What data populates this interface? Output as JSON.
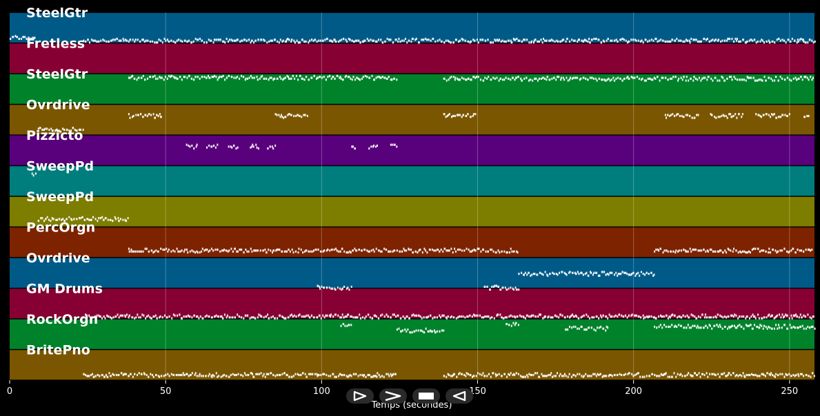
{
  "tracks": [
    {
      "name": "SteelGtr",
      "color": "#005a87",
      "ymin": 40,
      "ymax": 72,
      "segments": [
        [
          0,
          8.5,
          45
        ],
        [
          23.5,
          258,
          42
        ]
      ]
    },
    {
      "name": "Fretless",
      "color": "#870033",
      "ymin": 40,
      "ymax": 72,
      "segments": [
        [
          38,
          124,
          35
        ],
        [
          139,
          258,
          34
        ]
      ]
    },
    {
      "name": "SteelGtr",
      "color": "#00822b",
      "ymin": 40,
      "ymax": 72,
      "segments": [
        [
          9,
          23.5,
          12
        ]
      ]
    },
    {
      "name": "Ovrdrive",
      "color": "#7a5600",
      "ymin": 40,
      "ymax": 72,
      "segments": [
        [
          38,
          49,
          60
        ],
        [
          85,
          95.5,
          60
        ],
        [
          139,
          149.5,
          60
        ],
        [
          210,
          221,
          60
        ],
        [
          224.5,
          235,
          60
        ],
        [
          239,
          250,
          60
        ],
        [
          254.5,
          256.5,
          60
        ]
      ]
    },
    {
      "name": "Pizzicto",
      "color": "#59007d",
      "ymin": 40,
      "ymax": 72,
      "segments": [
        [
          56.5,
          60,
          60
        ],
        [
          63,
          66.5,
          60
        ],
        [
          70,
          73,
          60
        ],
        [
          77,
          80,
          60
        ],
        [
          82.5,
          85,
          60
        ],
        [
          109.5,
          111,
          60
        ],
        [
          115,
          118,
          60
        ],
        [
          122,
          124,
          60
        ]
      ]
    },
    {
      "name": "SweepPd",
      "color": "#007d7d",
      "ymin": 40,
      "ymax": 72,
      "segments": [
        [
          7,
          8.5,
          63
        ]
      ]
    },
    {
      "name": "SweepPd",
      "color": "#7d7d00",
      "ymin": 40,
      "ymax": 72,
      "segments": [
        [
          9,
          38,
          48
        ]
      ]
    },
    {
      "name": "PercOrgn",
      "color": "#7d2300",
      "ymin": 40,
      "ymax": 72,
      "segments": [
        [
          38,
          163,
          47
        ],
        [
          206.5,
          257,
          47
        ]
      ]
    },
    {
      "name": "Ovrdrive",
      "color": "#005a87",
      "ymin": 40,
      "ymax": 72,
      "segments": [
        [
          98.5,
          109.5,
          40
        ],
        [
          152,
          163,
          40
        ],
        [
          163,
          207,
          55
        ]
      ]
    },
    {
      "name": "GM Drums",
      "color": "#870033",
      "ymin": 40,
      "ymax": 72,
      "segments": [
        [
          23.5,
          258,
          42
        ]
      ]
    },
    {
      "name": "RockOrgn",
      "color": "#00822b",
      "ymin": 40,
      "ymax": 72,
      "segments": [
        [
          106,
          109.5,
          66
        ],
        [
          124,
          139,
          60
        ],
        [
          159,
          163,
          66
        ],
        [
          178,
          192,
          62
        ],
        [
          206.5,
          258,
          64
        ]
      ]
    },
    {
      "name": "BritePno",
      "color": "#7a5600",
      "ymin": 40,
      "ymax": 72,
      "segments": [
        [
          23.5,
          124,
          45
        ],
        [
          139,
          258,
          45
        ]
      ]
    }
  ],
  "axis": {
    "xmin": 0,
    "xmax": 258,
    "ticks": [
      0,
      50,
      100,
      150,
      200,
      250
    ],
    "xlabel": "Temps (secondes)"
  },
  "controls": {
    "play_icon": "play-outline-icon",
    "forward_icon": "fast-forward-icon",
    "stop_icon": "stop-icon",
    "rewind_icon": "rewind-icon"
  }
}
